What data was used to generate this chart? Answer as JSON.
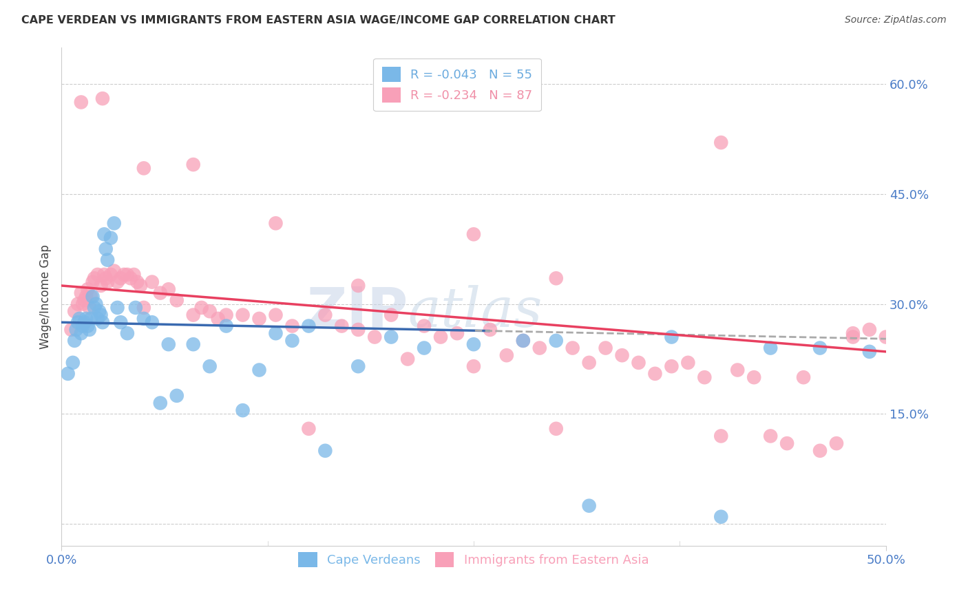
{
  "title": "CAPE VERDEAN VS IMMIGRANTS FROM EASTERN ASIA WAGE/INCOME GAP CORRELATION CHART",
  "source": "Source: ZipAtlas.com",
  "ylabel": "Wage/Income Gap",
  "y_ticks": [
    0.0,
    0.15,
    0.3,
    0.45,
    0.6
  ],
  "y_tick_labels": [
    "",
    "15.0%",
    "30.0%",
    "45.0%",
    "60.0%"
  ],
  "xlim": [
    0.0,
    0.5
  ],
  "ylim": [
    -0.03,
    0.65
  ],
  "watermark": "ZIPatlas",
  "legend_entries": [
    {
      "label": "R = -0.043   N = 55",
      "color": "#6aaade"
    },
    {
      "label": "R = -0.234   N = 87",
      "color": "#f090a8"
    }
  ],
  "group1_color": "#7ab8e8",
  "group2_color": "#f8a0b8",
  "line1_color": "#3a6ab0",
  "line2_color": "#e84060",
  "line1_intercept": 0.275,
  "line1_slope": -0.045,
  "line2_intercept": 0.325,
  "line2_slope": -0.18,
  "line1_solid_end": 0.26,
  "cv_x": [
    0.004,
    0.007,
    0.008,
    0.009,
    0.01,
    0.011,
    0.012,
    0.013,
    0.014,
    0.015,
    0.016,
    0.017,
    0.018,
    0.019,
    0.02,
    0.021,
    0.022,
    0.023,
    0.024,
    0.025,
    0.026,
    0.027,
    0.028,
    0.03,
    0.032,
    0.034,
    0.036,
    0.04,
    0.045,
    0.05,
    0.055,
    0.06,
    0.065,
    0.07,
    0.08,
    0.09,
    0.1,
    0.11,
    0.12,
    0.13,
    0.14,
    0.15,
    0.16,
    0.18,
    0.2,
    0.22,
    0.25,
    0.28,
    0.3,
    0.32,
    0.37,
    0.4,
    0.43,
    0.46,
    0.49
  ],
  "cv_y": [
    0.205,
    0.22,
    0.25,
    0.265,
    0.275,
    0.28,
    0.26,
    0.27,
    0.275,
    0.28,
    0.27,
    0.265,
    0.28,
    0.31,
    0.295,
    0.3,
    0.28,
    0.29,
    0.285,
    0.275,
    0.395,
    0.375,
    0.36,
    0.39,
    0.41,
    0.295,
    0.275,
    0.26,
    0.295,
    0.28,
    0.275,
    0.165,
    0.245,
    0.175,
    0.245,
    0.215,
    0.27,
    0.155,
    0.21,
    0.26,
    0.25,
    0.27,
    0.1,
    0.215,
    0.255,
    0.24,
    0.245,
    0.25,
    0.25,
    0.025,
    0.255,
    0.01,
    0.24,
    0.24,
    0.235
  ],
  "ea_x": [
    0.006,
    0.008,
    0.01,
    0.012,
    0.013,
    0.014,
    0.015,
    0.016,
    0.017,
    0.018,
    0.019,
    0.02,
    0.022,
    0.024,
    0.026,
    0.027,
    0.028,
    0.03,
    0.032,
    0.034,
    0.036,
    0.038,
    0.04,
    0.042,
    0.044,
    0.046,
    0.048,
    0.05,
    0.055,
    0.06,
    0.065,
    0.07,
    0.08,
    0.085,
    0.09,
    0.095,
    0.1,
    0.11,
    0.12,
    0.13,
    0.14,
    0.15,
    0.16,
    0.17,
    0.18,
    0.19,
    0.2,
    0.21,
    0.22,
    0.23,
    0.24,
    0.25,
    0.26,
    0.27,
    0.28,
    0.29,
    0.3,
    0.31,
    0.32,
    0.33,
    0.34,
    0.35,
    0.36,
    0.37,
    0.38,
    0.39,
    0.4,
    0.41,
    0.42,
    0.43,
    0.44,
    0.45,
    0.46,
    0.47,
    0.48,
    0.49,
    0.5,
    0.012,
    0.025,
    0.05,
    0.08,
    0.13,
    0.18,
    0.25,
    0.3,
    0.4,
    0.48
  ],
  "ea_y": [
    0.265,
    0.29,
    0.3,
    0.315,
    0.3,
    0.305,
    0.31,
    0.32,
    0.295,
    0.31,
    0.33,
    0.335,
    0.34,
    0.325,
    0.34,
    0.335,
    0.33,
    0.34,
    0.345,
    0.33,
    0.335,
    0.34,
    0.34,
    0.335,
    0.34,
    0.33,
    0.325,
    0.295,
    0.33,
    0.315,
    0.32,
    0.305,
    0.285,
    0.295,
    0.29,
    0.28,
    0.285,
    0.285,
    0.28,
    0.285,
    0.27,
    0.13,
    0.285,
    0.27,
    0.265,
    0.255,
    0.285,
    0.225,
    0.27,
    0.255,
    0.26,
    0.215,
    0.265,
    0.23,
    0.25,
    0.24,
    0.13,
    0.24,
    0.22,
    0.24,
    0.23,
    0.22,
    0.205,
    0.215,
    0.22,
    0.2,
    0.12,
    0.21,
    0.2,
    0.12,
    0.11,
    0.2,
    0.1,
    0.11,
    0.255,
    0.265,
    0.255,
    0.575,
    0.58,
    0.485,
    0.49,
    0.41,
    0.325,
    0.395,
    0.335,
    0.52,
    0.26
  ]
}
